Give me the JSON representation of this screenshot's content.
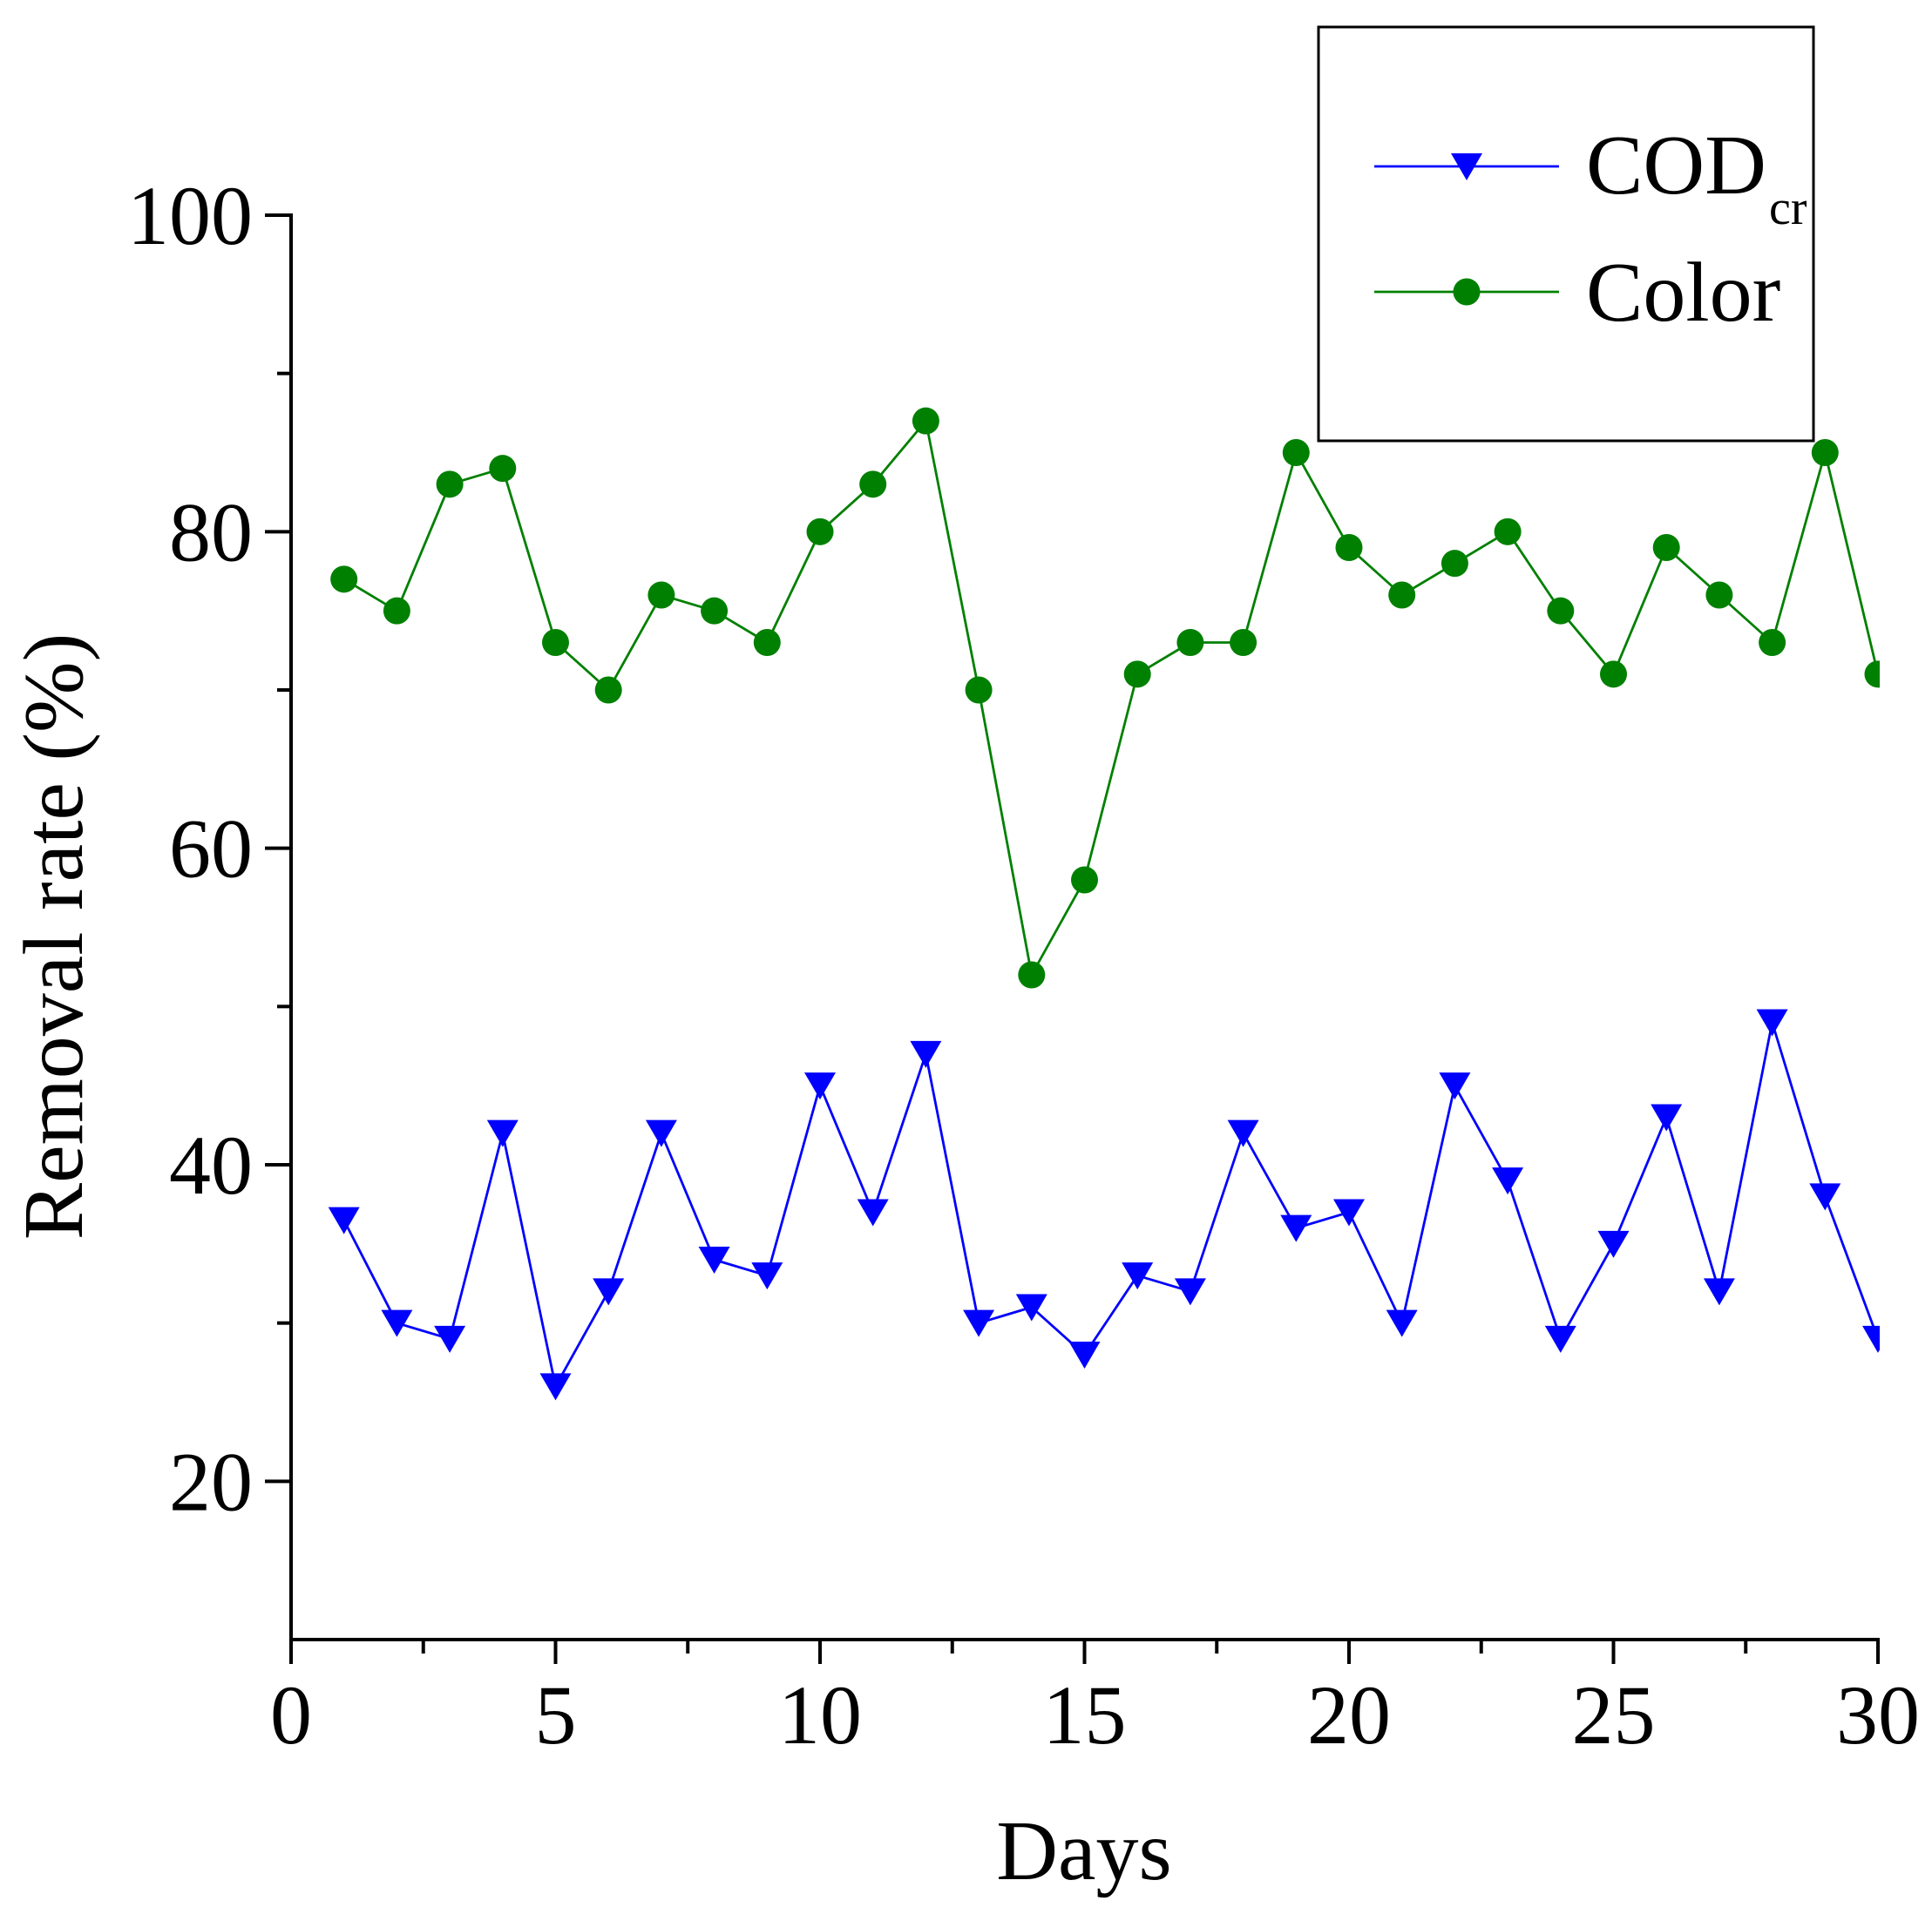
{
  "chart_data": {
    "type": "line",
    "title": "",
    "xlabel": "Days",
    "ylabel": "Removal rate (%)",
    "xlim": [
      0,
      30
    ],
    "ylim": [
      10,
      100
    ],
    "xticks": [
      0,
      5,
      10,
      15,
      20,
      25,
      30
    ],
    "xtick_labels": [
      "0",
      "5",
      "10",
      "15",
      "20",
      "25",
      "30"
    ],
    "x_minor_ticks": [
      2.5,
      7.5,
      12.5,
      17.5,
      22.5,
      27.5
    ],
    "yticks": [
      20,
      40,
      60,
      80,
      100
    ],
    "ytick_labels": [
      "20",
      "40",
      "60",
      "80",
      "100"
    ],
    "y_minor_ticks": [
      30,
      50,
      70,
      90
    ],
    "grid": false,
    "legend_position": "top-right",
    "x": [
      1,
      2,
      3,
      4,
      5,
      6,
      7,
      8,
      9,
      10,
      11,
      12,
      13,
      14,
      15,
      16,
      17,
      18,
      19,
      20,
      21,
      22,
      23,
      24,
      25,
      26,
      27,
      28,
      29,
      30
    ],
    "series": [
      {
        "name": "COD",
        "name_subscript": "cr",
        "marker": "triangle-down",
        "color": "#0000FF",
        "values": [
          36.5,
          30,
          29,
          42,
          26,
          32,
          42,
          34,
          33,
          45,
          37,
          47,
          30,
          31,
          28,
          33,
          32,
          42,
          36,
          37,
          30,
          45,
          39,
          29,
          35,
          43,
          32,
          49,
          38,
          29
        ]
      },
      {
        "name": "Color",
        "marker": "circle",
        "color": "#008000",
        "values": [
          77,
          75,
          83,
          84,
          73,
          70,
          76,
          75,
          73,
          80,
          83,
          87,
          70,
          52,
          58,
          71,
          73,
          73,
          85,
          79,
          76,
          78,
          80,
          75,
          71,
          79,
          76,
          73,
          85,
          71
        ]
      }
    ]
  }
}
